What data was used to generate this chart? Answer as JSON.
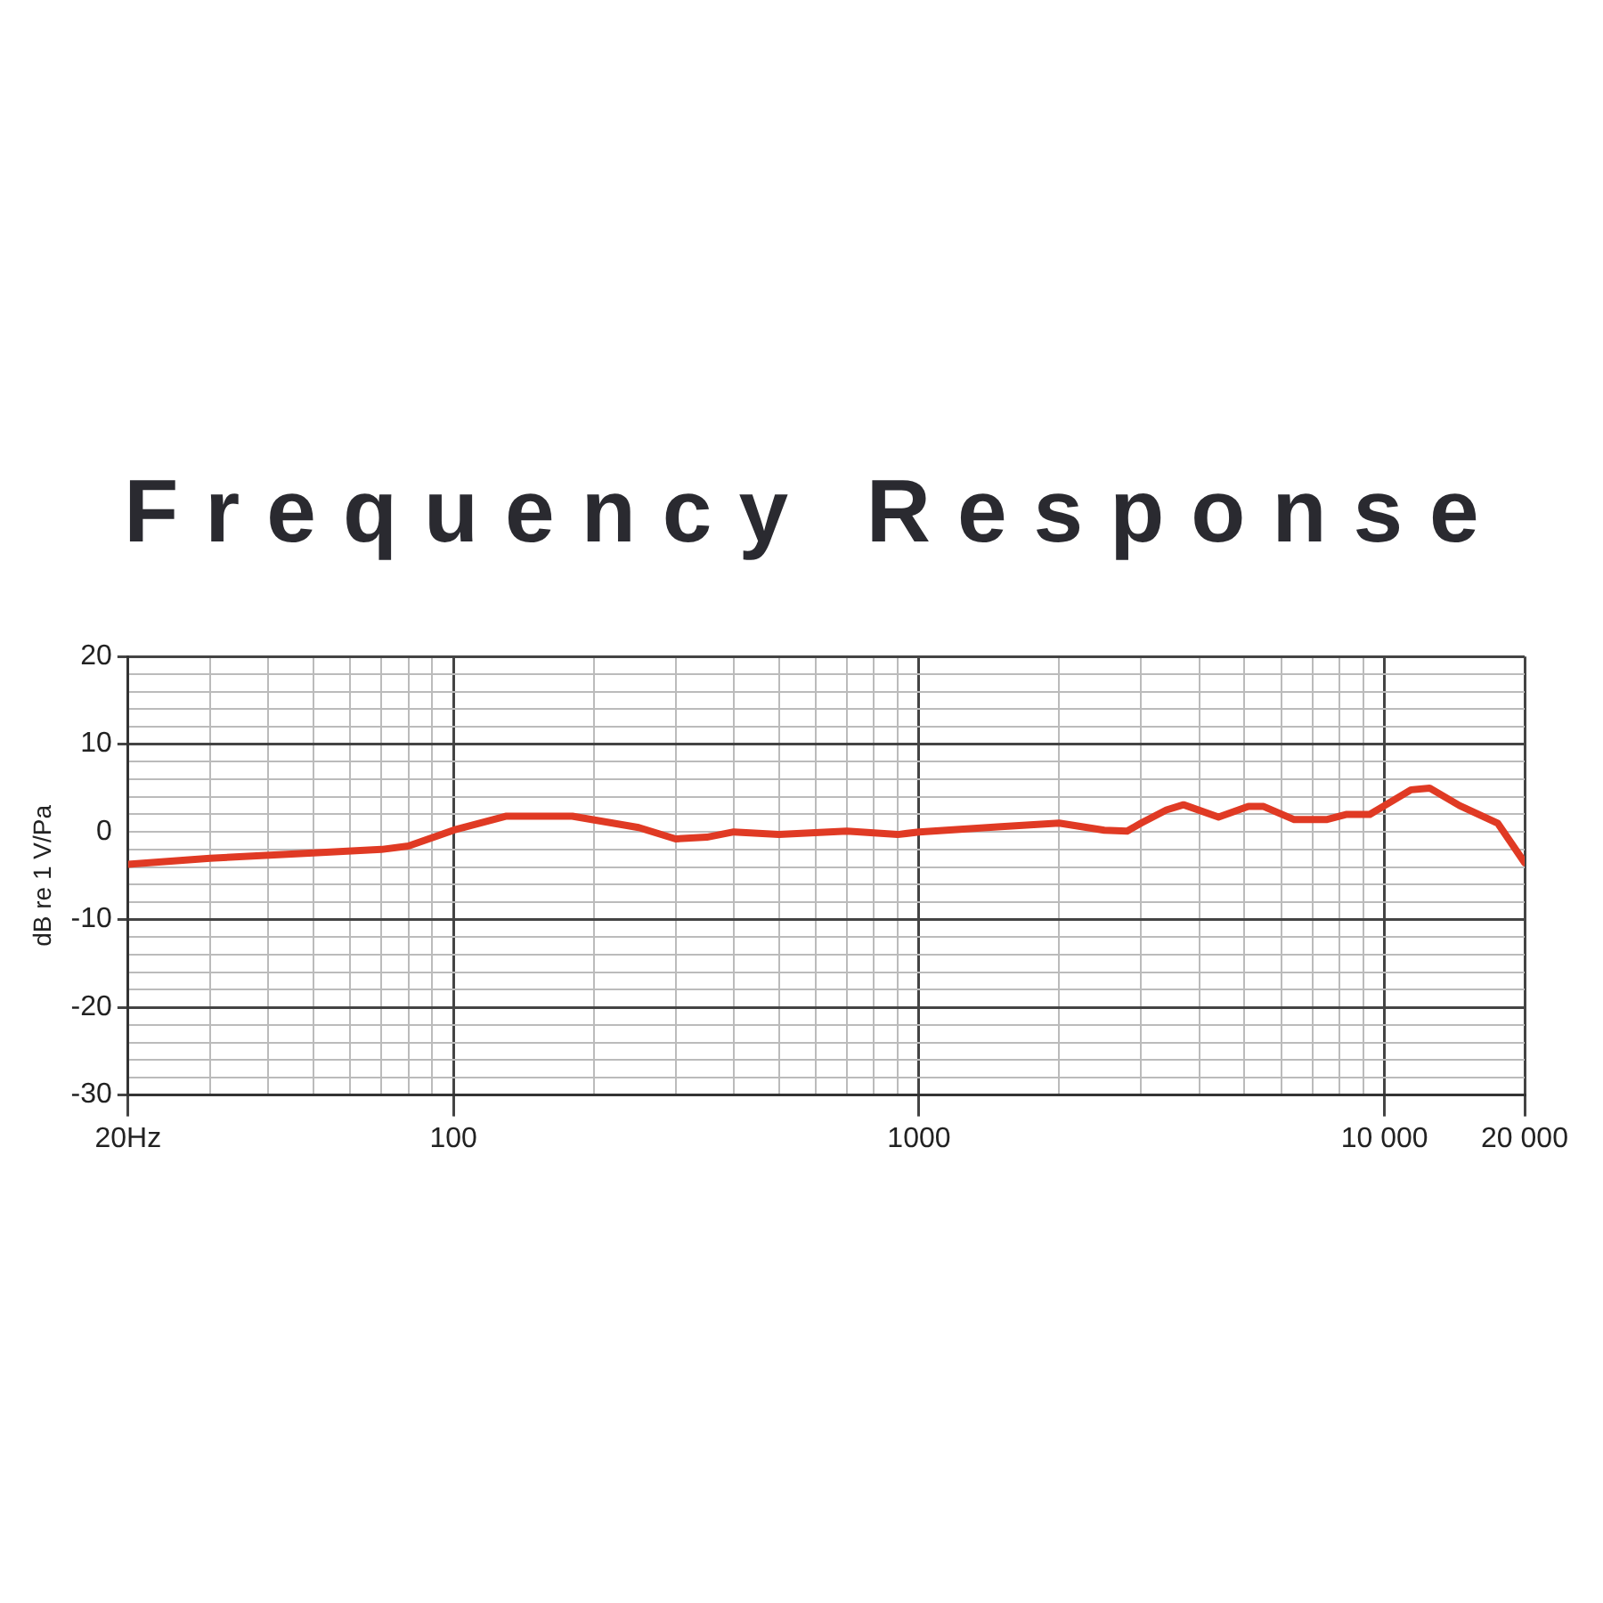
{
  "chart_data": {
    "type": "line",
    "title": "Frequency Response",
    "ylabel": "dB re 1 V/Pa",
    "log": "x",
    "grid": true,
    "legend": false,
    "marker": "none",
    "line_style": "solid",
    "xlim": [
      20,
      20000
    ],
    "ylim": [
      -30,
      20
    ],
    "xticks": [
      {
        "value": 20,
        "label": "20Hz"
      },
      {
        "value": 30,
        "label": null
      },
      {
        "value": 40,
        "label": null
      },
      {
        "value": 50,
        "label": null
      },
      {
        "value": 60,
        "label": null
      },
      {
        "value": 70,
        "label": null
      },
      {
        "value": 80,
        "label": null
      },
      {
        "value": 90,
        "label": null
      },
      100,
      {
        "value": 200,
        "label": null
      },
      {
        "value": 300,
        "label": null
      },
      {
        "value": 400,
        "label": null
      },
      {
        "value": 500,
        "label": null
      },
      {
        "value": 600,
        "label": null
      },
      {
        "value": 700,
        "label": null
      },
      {
        "value": 800,
        "label": null
      },
      {
        "value": 900,
        "label": null
      },
      1000,
      {
        "value": 2000,
        "label": null
      },
      {
        "value": 3000,
        "label": null
      },
      {
        "value": 4000,
        "label": null
      },
      {
        "value": 5000,
        "label": null
      },
      {
        "value": 6000,
        "label": null
      },
      {
        "value": 7000,
        "label": null
      },
      {
        "value": 8000,
        "label": null
      },
      {
        "value": 9000,
        "label": null
      },
      {
        "value": 10000,
        "label": "10 000"
      },
      {
        "value": 20000,
        "label": "20 000"
      }
    ],
    "yticks": [
      -30,
      {
        "value": -28,
        "label": null
      },
      {
        "value": -26,
        "label": null
      },
      {
        "value": -24,
        "label": null
      },
      {
        "value": -22,
        "label": null
      },
      -20,
      {
        "value": -18,
        "label": null
      },
      {
        "value": -16,
        "label": null
      },
      {
        "value": -14,
        "label": null
      },
      {
        "value": -12,
        "label": null
      },
      -10,
      {
        "value": -8,
        "label": null
      },
      {
        "value": -6,
        "label": null
      },
      {
        "value": -4,
        "label": null
      },
      {
        "value": -2,
        "label": null
      },
      0,
      {
        "value": 2,
        "label": null
      },
      {
        "value": 4,
        "label": null
      },
      {
        "value": 6,
        "label": null
      },
      {
        "value": 8,
        "label": null
      },
      10,
      {
        "value": 12,
        "label": null
      },
      {
        "value": 14,
        "label": null
      },
      {
        "value": 16,
        "label": null
      },
      {
        "value": 18,
        "label": null
      },
      20
    ],
    "series": [
      {
        "color": "#e03a24",
        "x": [
          20,
          30,
          50,
          70,
          80,
          100,
          130,
          180,
          250,
          300,
          350,
          400,
          500,
          700,
          900,
          1000,
          1500,
          2000,
          2500,
          2800,
          3000,
          3400,
          3700,
          4400,
          5100,
          5500,
          6400,
          7500,
          8300,
          9300,
          10000,
          11400,
          12500,
          14500,
          17500,
          20000
        ],
        "values": [
          -3.7,
          -3.0,
          -2.4,
          -2.0,
          -1.6,
          0.2,
          1.8,
          1.8,
          0.5,
          -0.8,
          -0.6,
          0,
          -0.3,
          0.1,
          -0.3,
          0,
          0.6,
          1.0,
          0.2,
          0.1,
          1.0,
          2.5,
          3.1,
          1.7,
          2.9,
          2.9,
          1.4,
          1.4,
          2.0,
          2.0,
          3.0,
          4.8,
          5.0,
          3.0,
          1.0,
          -3.5
        ]
      }
    ]
  }
}
